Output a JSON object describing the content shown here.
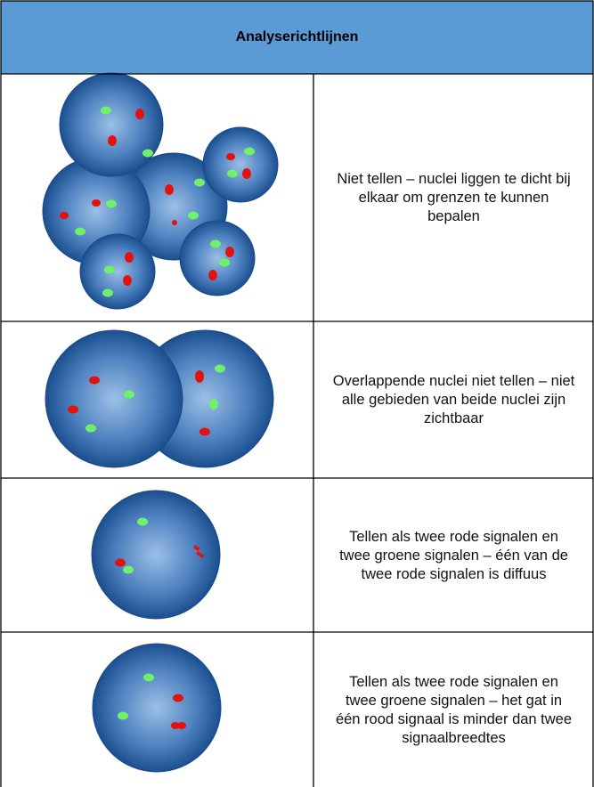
{
  "header": {
    "title": "Analyserichtlijnen"
  },
  "table": {
    "rows": [
      {
        "text": "Niet tellen – nuclei liggen te dicht bij elkaar om grenzen te kunnen bepalen"
      },
      {
        "text": "Overlappende nuclei niet tellen – niet alle gebieden van beide nuclei zijn zichtbaar"
      },
      {
        "text": "Tellen als twee rode signalen en twee groene signalen – één van de twee rode signalen is diffuus"
      },
      {
        "text": "Tellen als twee rode signalen en twee groene signalen – het gat in één rood signaal is minder dan twee signaalbreedtes"
      }
    ]
  }
}
